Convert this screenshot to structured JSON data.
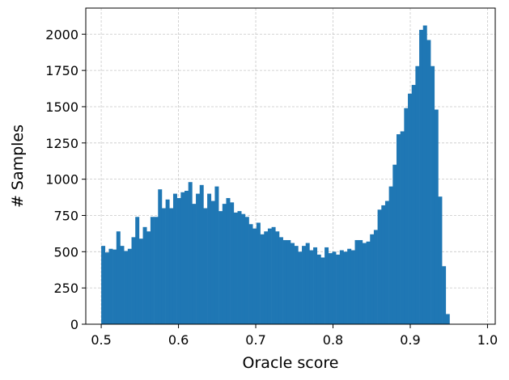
{
  "chart_data": {
    "type": "bar",
    "xlabel": "Oracle score",
    "ylabel": "# Samples",
    "xlim": [
      0.48,
      1.01
    ],
    "ylim": [
      0,
      2180
    ],
    "grid": true,
    "color": "#1f77b4",
    "xticks": [
      0.5,
      0.6,
      0.7,
      0.8,
      0.9,
      1.0
    ],
    "xtick_labels": [
      "0.5",
      "0.6",
      "0.7",
      "0.8",
      "0.9",
      "1.0"
    ],
    "yticks": [
      0,
      250,
      500,
      750,
      1000,
      1250,
      1500,
      1750,
      2000
    ],
    "ytick_labels": [
      "0",
      "250",
      "500",
      "750",
      "1000",
      "1250",
      "1500",
      "1750",
      "2000"
    ],
    "bin_start": 0.5,
    "bin_width": 0.0049,
    "values": [
      540,
      495,
      520,
      515,
      640,
      540,
      505,
      520,
      600,
      740,
      590,
      670,
      640,
      740,
      740,
      930,
      800,
      860,
      800,
      900,
      870,
      910,
      920,
      980,
      830,
      900,
      960,
      800,
      900,
      850,
      950,
      780,
      830,
      870,
      840,
      770,
      780,
      760,
      740,
      690,
      660,
      700,
      620,
      640,
      660,
      670,
      640,
      600,
      580,
      580,
      560,
      540,
      500,
      540,
      560,
      510,
      530,
      480,
      460,
      530,
      490,
      500,
      480,
      510,
      500,
      520,
      510,
      580,
      580,
      560,
      570,
      620,
      650,
      790,
      820,
      850,
      950,
      1100,
      1310,
      1330,
      1490,
      1590,
      1650,
      1780,
      2030,
      2060,
      1960,
      1780,
      1480,
      880,
      400,
      70
    ]
  }
}
